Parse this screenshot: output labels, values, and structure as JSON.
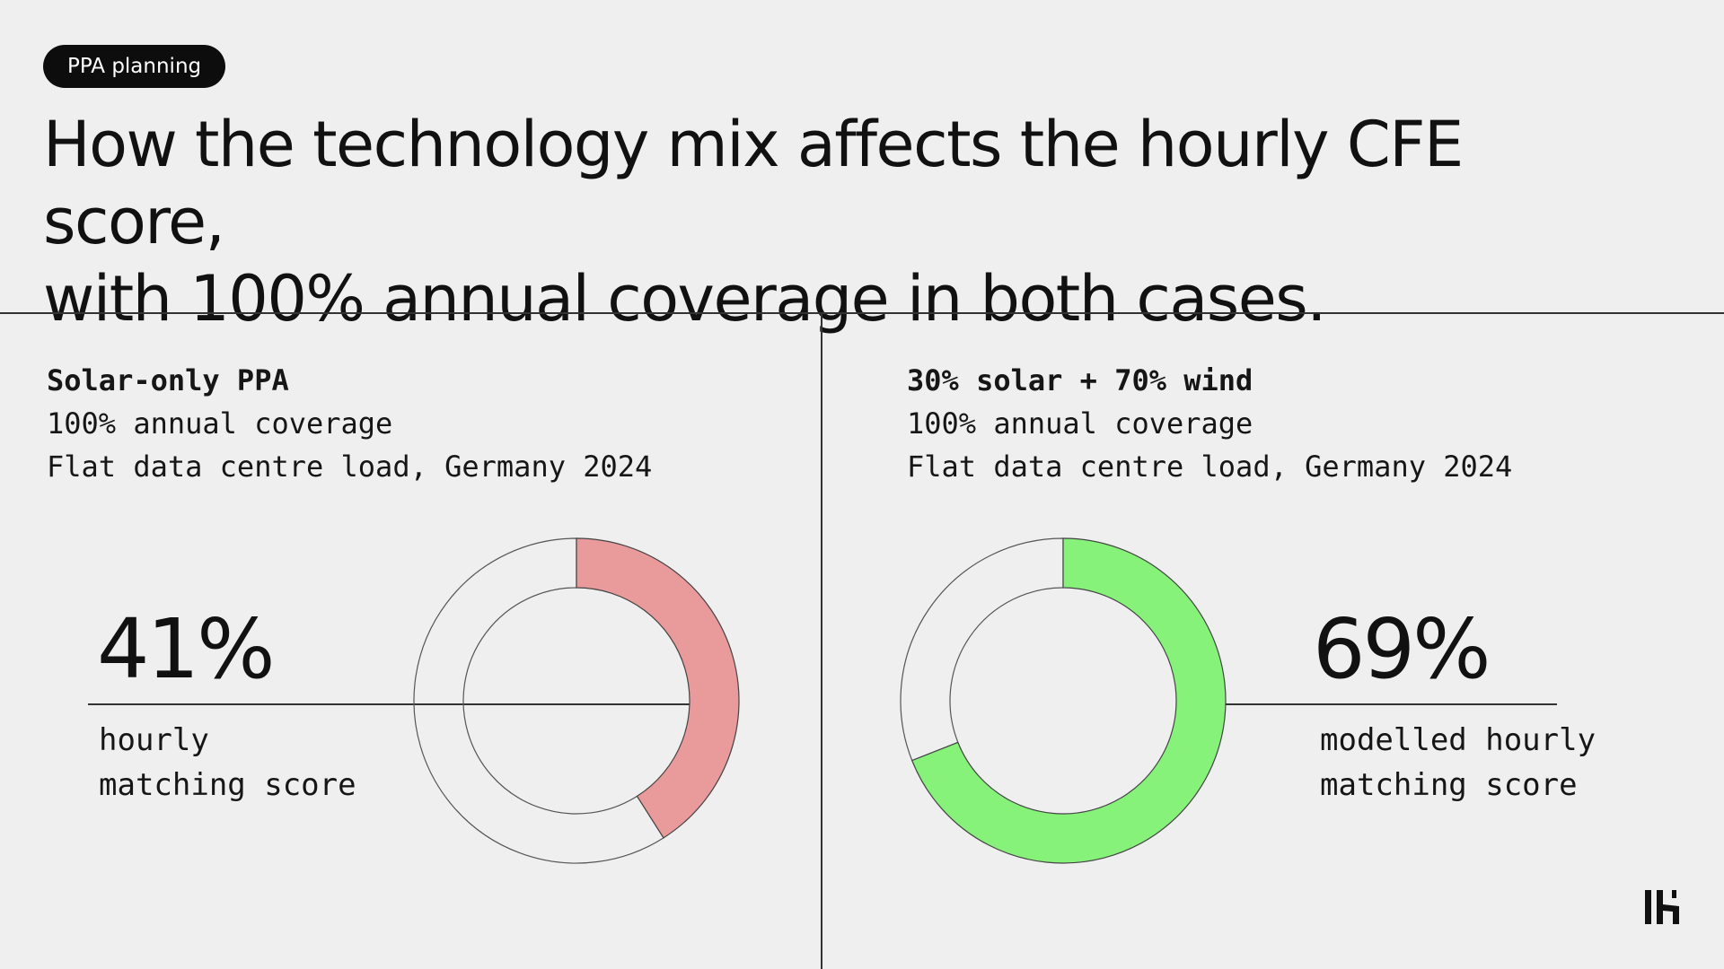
{
  "tag": "PPA planning",
  "headline": {
    "line1": "How the technology mix affects the hourly CFE score,",
    "line2": "with 100% annual coverage in both cases."
  },
  "panels": [
    {
      "title": "Solar-only PPA",
      "line2": "100% annual coverage",
      "line3": "Flat data centre load, Germany 2024",
      "metric": "41%",
      "caption": "hourly\nmatching score"
    },
    {
      "title": "30% solar + 70% wind",
      "line2": "100% annual coverage",
      "line3": "Flat data centre load, Germany 2024",
      "metric": "69%",
      "caption": "modelled hourly\nmatching score"
    }
  ],
  "chart_data": [
    {
      "type": "pie",
      "style": "donut",
      "series": "Solar-only PPA",
      "value": 41,
      "remainder": 59,
      "unit": "%",
      "fill_color": "#e99a9a"
    },
    {
      "type": "pie",
      "style": "donut",
      "series": "30% solar + 70% wind",
      "value": 69,
      "remainder": 31,
      "unit": "%",
      "fill_color": "#87f27a"
    }
  ],
  "logo_icon": "brand-logo-icon"
}
